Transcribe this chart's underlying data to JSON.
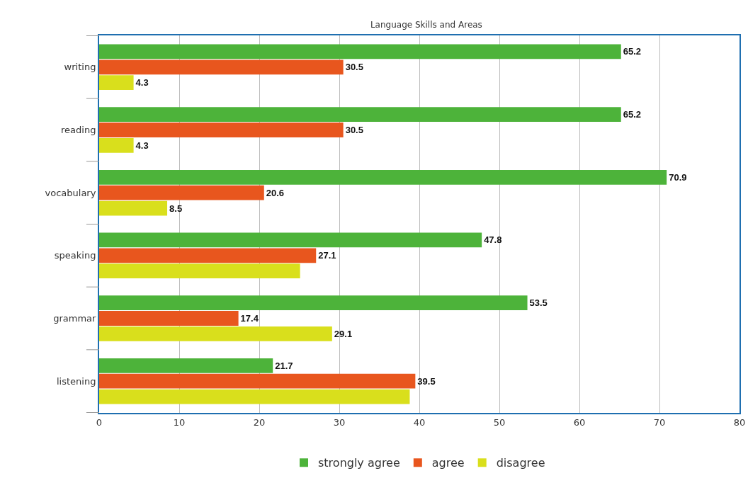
{
  "chart_data": {
    "type": "bar",
    "orientation": "horizontal",
    "title": "Language Skills and Areas",
    "categories": [
      "writing",
      "reading",
      "vocabulary",
      "speaking",
      "grammar",
      "listening"
    ],
    "series": [
      {
        "name": "strongly agree",
        "color": "#4db33a",
        "values": [
          65.2,
          65.2,
          70.9,
          47.8,
          53.5,
          21.7
        ],
        "value_labels": [
          "65.2",
          "65.2",
          "70.9",
          "47.8",
          "53.5",
          "21.7"
        ]
      },
      {
        "name": "agree",
        "color": "#e8561e",
        "values": [
          30.5,
          30.5,
          20.6,
          27.1,
          17.4,
          39.5
        ],
        "value_labels": [
          "30.5",
          "30.5",
          "20.6",
          "27.1",
          "17.4",
          "39.5"
        ]
      },
      {
        "name": "disagree",
        "color": "#d9df1c",
        "values": [
          4.3,
          4.3,
          8.5,
          25.1,
          29.1,
          38.8
        ],
        "value_labels": [
          "4.3",
          "4.3",
          "8.5",
          null,
          "29.1",
          null
        ]
      }
    ],
    "xlim": [
      0,
      80
    ],
    "xticks": [
      0,
      10,
      20,
      30,
      40,
      50,
      60,
      70,
      80
    ],
    "grid": "x",
    "legend": "bottom"
  }
}
